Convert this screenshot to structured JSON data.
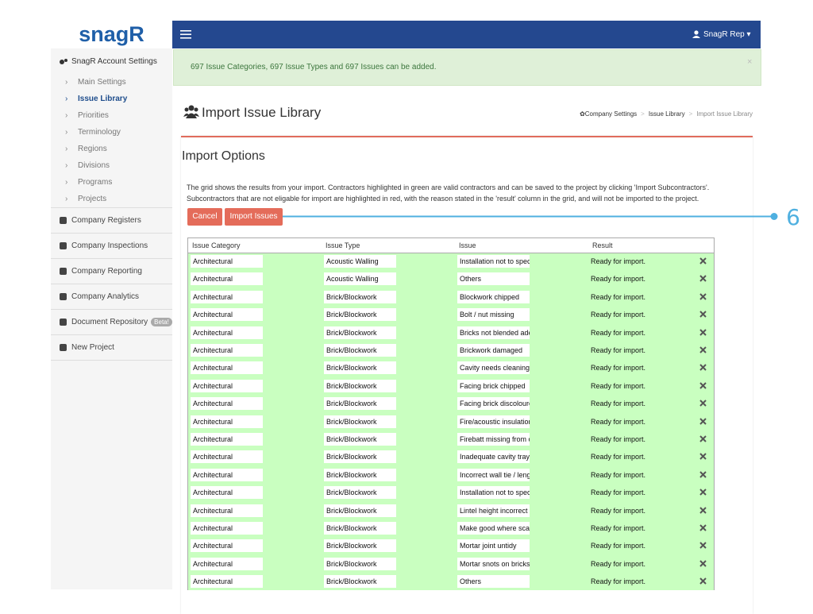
{
  "sidebar": {
    "logo": "snagR",
    "section_title": "SnagR Account Settings",
    "submenu": [
      "Main Settings",
      "Issue Library",
      "Priorities",
      "Terminology",
      "Regions",
      "Divisions",
      "Programs",
      "Projects"
    ],
    "menu": [
      {
        "label": "Company Registers"
      },
      {
        "label": "Company Inspections"
      },
      {
        "label": "Company Reporting"
      },
      {
        "label": "Company Analytics"
      },
      {
        "label": "Document Repository",
        "badge": "Beta!"
      },
      {
        "label": "New Project"
      }
    ]
  },
  "navbar": {
    "user": "SnagR Rep"
  },
  "alert": {
    "text": "697 Issue Categories, 697 Issue Types and 697 Issues can be added."
  },
  "header": {
    "title": "Import Issue Library",
    "breadcrumb": [
      "Company Settings",
      "Issue Library",
      "Import Issue Library"
    ]
  },
  "panel": {
    "title": "Import Options",
    "description": [
      "The grid shows the results from your import. Contractors highlighted in green are valid contractors and can be saved to the project by clicking 'Import Subcontractors'.",
      "Subcontractors that are not eligable for import are highlighted in red, with the reason stated in the 'result' column in the grid, and will not be imported to the project."
    ],
    "buttons": [
      "Cancel",
      "Import Issues"
    ],
    "annotation": "6"
  },
  "table": {
    "columns": [
      "Issue Category",
      "Issue Type",
      "Issue",
      "Result"
    ],
    "rows": [
      [
        "Architectural",
        "Acoustic Walling",
        "Installation not to specif",
        "Ready for import."
      ],
      [
        "Architectural",
        "Acoustic Walling",
        "Others",
        "Ready for import."
      ],
      [
        "Architectural",
        "Brick/Blockwork",
        "Blockwork chipped",
        "Ready for import."
      ],
      [
        "Architectural",
        "Brick/Blockwork",
        "Bolt / nut missing",
        "Ready for import."
      ],
      [
        "Architectural",
        "Brick/Blockwork",
        "Bricks not blended adec",
        "Ready for import."
      ],
      [
        "Architectural",
        "Brick/Blockwork",
        "Brickwork damaged",
        "Ready for import."
      ],
      [
        "Architectural",
        "Brick/Blockwork",
        "Cavity needs cleaning",
        "Ready for import."
      ],
      [
        "Architectural",
        "Brick/Blockwork",
        "Facing brick chipped",
        "Ready for import."
      ],
      [
        "Architectural",
        "Brick/Blockwork",
        "Facing brick discoloure",
        "Ready for import."
      ],
      [
        "Architectural",
        "Brick/Blockwork",
        "Fire/acoustic insulation",
        "Ready for import."
      ],
      [
        "Architectural",
        "Brick/Blockwork",
        "Firebatt missing from ca",
        "Ready for import."
      ],
      [
        "Architectural",
        "Brick/Blockwork",
        "Inadequate cavity tray",
        "Ready for import."
      ],
      [
        "Architectural",
        "Brick/Blockwork",
        "Incorrect wall tie / lengtl",
        "Ready for import."
      ],
      [
        "Architectural",
        "Brick/Blockwork",
        "Installation not to specif",
        "Ready for import."
      ],
      [
        "Architectural",
        "Brick/Blockwork",
        "Lintel height incorrect",
        "Ready for import."
      ],
      [
        "Architectural",
        "Brick/Blockwork",
        "Make good where scaff",
        "Ready for import."
      ],
      [
        "Architectural",
        "Brick/Blockwork",
        "Mortar joint untidy",
        "Ready for import."
      ],
      [
        "Architectural",
        "Brick/Blockwork",
        "Mortar snots on bricks/t",
        "Ready for import."
      ],
      [
        "Architectural",
        "Brick/Blockwork",
        "Others",
        "Ready for import."
      ]
    ]
  }
}
